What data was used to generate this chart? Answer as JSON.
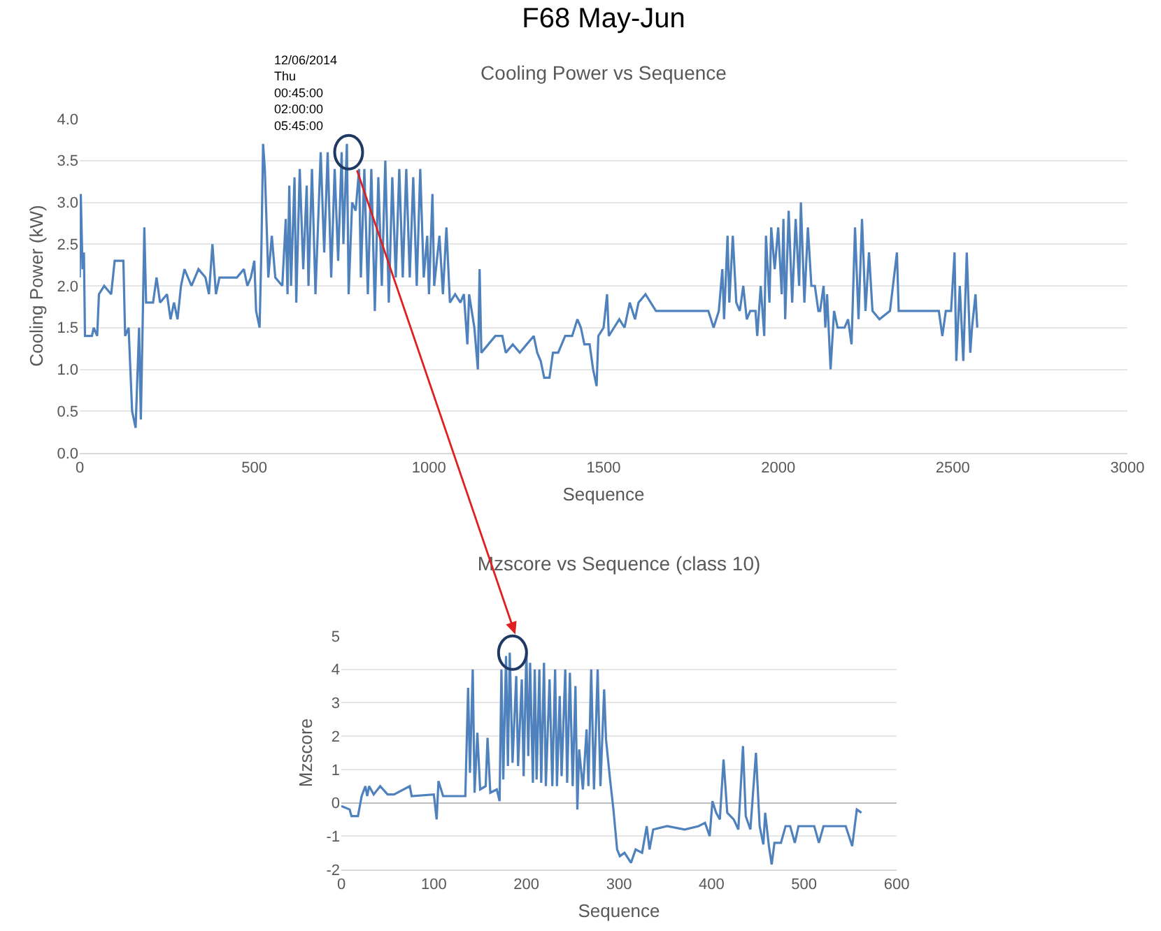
{
  "chart_data": [
    {
      "type": "line",
      "title": "F68 May-Jun",
      "subtitle": "Cooling Power vs Sequence",
      "xlabel": "Sequence",
      "ylabel": "Cooling Power (kW)",
      "grid": "y",
      "x": [
        0,
        3,
        8,
        12,
        15,
        35,
        40,
        50,
        55,
        70,
        90,
        100,
        125,
        130,
        140,
        150,
        160,
        170,
        175,
        180,
        185,
        190,
        210,
        220,
        230,
        250,
        260,
        270,
        280,
        290,
        300,
        320,
        340,
        360,
        370,
        380,
        390,
        400,
        450,
        470,
        480,
        490,
        500,
        505,
        515,
        520,
        525,
        530,
        540,
        550,
        560,
        580,
        590,
        595,
        600,
        605,
        615,
        620,
        630,
        640,
        650,
        655,
        665,
        675,
        690,
        700,
        710,
        720,
        730,
        740,
        750,
        755,
        765,
        770,
        780,
        790,
        800,
        805,
        815,
        825,
        835,
        845,
        855,
        865,
        875,
        885,
        895,
        905,
        915,
        925,
        935,
        945,
        955,
        965,
        975,
        985,
        995,
        1000,
        1010,
        1015,
        1030,
        1040,
        1050,
        1060,
        1075,
        1090,
        1100,
        1110,
        1115,
        1130,
        1140,
        1145,
        1150,
        1170,
        1190,
        1210,
        1220,
        1240,
        1260,
        1280,
        1300,
        1310,
        1320,
        1330,
        1345,
        1355,
        1370,
        1390,
        1410,
        1425,
        1435,
        1445,
        1460,
        1470,
        1480,
        1485,
        1500,
        1510,
        1515,
        1530,
        1545,
        1560,
        1575,
        1590,
        1600,
        1620,
        1650,
        1700,
        1750,
        1800,
        1815,
        1830,
        1840,
        1845,
        1855,
        1860,
        1870,
        1880,
        1890,
        1900,
        1910,
        1920,
        1935,
        1940,
        1950,
        1960,
        1965,
        1975,
        1980,
        1990,
        2000,
        2010,
        2015,
        2020,
        2030,
        2040,
        2050,
        2060,
        2065,
        2075,
        2085,
        2095,
        2105,
        2115,
        2120,
        2130,
        2135,
        2140,
        2150,
        2160,
        2170,
        2190,
        2200,
        2210,
        2220,
        2230,
        2240,
        2250,
        2260,
        2270,
        2290,
        2320,
        2340,
        2345,
        2400,
        2460,
        2470,
        2480,
        2495,
        2505,
        2510,
        2520,
        2530,
        2540,
        2550,
        2555,
        2565,
        2570
      ],
      "series": [
        {
          "color": "#4f81bd",
          "values": [
            2.1,
            3.1,
            2.2,
            2.4,
            1.4,
            1.4,
            1.5,
            1.4,
            1.9,
            2.0,
            1.9,
            2.3,
            2.3,
            1.4,
            1.5,
            0.5,
            0.3,
            1.5,
            0.4,
            1.5,
            2.7,
            1.8,
            1.8,
            2.1,
            1.8,
            1.9,
            1.6,
            1.8,
            1.6,
            2.0,
            2.2,
            2.0,
            2.2,
            2.1,
            1.9,
            2.5,
            1.9,
            2.1,
            2.1,
            2.2,
            2.0,
            2.1,
            2.3,
            1.7,
            1.5,
            2.4,
            3.7,
            3.4,
            2.1,
            2.6,
            2.1,
            2.0,
            2.8,
            1.9,
            3.2,
            2.0,
            3.3,
            1.8,
            3.4,
            2.2,
            3.2,
            2.0,
            3.4,
            1.9,
            3.6,
            2.4,
            3.6,
            2.1,
            3.4,
            2.3,
            3.6,
            2.5,
            3.7,
            1.9,
            3.0,
            2.9,
            3.4,
            2.1,
            3.4,
            1.9,
            3.4,
            1.7,
            3.3,
            2.0,
            3.5,
            1.8,
            3.3,
            2.1,
            3.4,
            2.1,
            3.4,
            2.1,
            3.3,
            2.0,
            3.4,
            2.1,
            2.6,
            1.9,
            3.1,
            2.0,
            2.6,
            1.9,
            2.7,
            1.8,
            1.9,
            1.8,
            1.9,
            1.3,
            1.9,
            1.5,
            1.0,
            2.2,
            1.2,
            1.3,
            1.4,
            1.4,
            1.2,
            1.3,
            1.2,
            1.3,
            1.4,
            1.2,
            1.1,
            0.9,
            0.9,
            1.2,
            1.2,
            1.4,
            1.4,
            1.6,
            1.5,
            1.3,
            1.3,
            1.0,
            0.8,
            1.4,
            1.5,
            1.9,
            1.4,
            1.5,
            1.6,
            1.5,
            1.8,
            1.6,
            1.8,
            1.9,
            1.7,
            1.7,
            1.7,
            1.7,
            1.5,
            1.7,
            2.2,
            1.6,
            2.6,
            1.8,
            2.6,
            1.8,
            1.7,
            2.0,
            1.6,
            1.7,
            1.7,
            1.4,
            2.0,
            1.4,
            2.6,
            1.8,
            2.7,
            2.2,
            2.7,
            1.9,
            2.8,
            1.6,
            2.9,
            1.8,
            2.8,
            2.0,
            3.0,
            1.8,
            2.7,
            2.0,
            2.0,
            1.7,
            1.7,
            2.0,
            1.5,
            1.9,
            1.0,
            1.7,
            1.5,
            1.5,
            1.6,
            1.3,
            2.7,
            1.6,
            2.8,
            1.7,
            2.4,
            1.7,
            1.6,
            1.7,
            2.4,
            1.7,
            1.7,
            1.7,
            1.4,
            1.7,
            1.7,
            2.4,
            1.1,
            2.0,
            1.1,
            2.4,
            1.2,
            1.5,
            1.9,
            1.5
          ]
        }
      ],
      "xlim": [
        0,
        3000
      ],
      "xticks": [
        0,
        500,
        1000,
        1500,
        2000,
        2500,
        3000
      ],
      "ylim": [
        0,
        4
      ],
      "yticks": [
        {
          "value": 0,
          "label": "0.0"
        },
        {
          "value": 0.5,
          "label": "0.5"
        },
        {
          "value": 1,
          "label": "1.0"
        },
        {
          "value": 1.5,
          "label": "1.5"
        },
        {
          "value": 2,
          "label": "2.0"
        },
        {
          "value": 2.5,
          "label": "2.5"
        },
        {
          "value": 3,
          "label": "3.0"
        },
        {
          "value": 3.5,
          "label": "3.5"
        },
        {
          "value": 4,
          "label": "4.0"
        }
      ],
      "annotations": [
        {
          "text": "12/06/2014\nThu\n00:45:00\n02:00:00\n05:45:00",
          "x": 770,
          "y": 3.6
        }
      ]
    },
    {
      "type": "line",
      "title": "Mzscore vs Sequence (class 10)",
      "xlabel": "Sequence",
      "ylabel": "Mzscore",
      "grid": "y",
      "x": [
        0,
        9,
        11,
        18,
        22,
        26,
        28,
        30,
        35,
        42,
        50,
        57,
        74,
        76,
        100,
        103,
        105,
        110,
        134,
        137,
        139,
        142,
        144,
        147,
        150,
        156,
        158,
        161,
        168,
        171,
        173,
        175,
        178,
        180,
        182,
        185,
        189,
        191,
        195,
        197,
        200,
        202,
        204,
        207,
        209,
        211,
        214,
        216,
        219,
        221,
        225,
        228,
        231,
        233,
        236,
        238,
        242,
        244,
        247,
        250,
        253,
        255,
        257,
        261,
        265,
        267,
        270,
        273,
        277,
        280,
        284,
        286,
        290,
        294,
        298,
        301,
        306,
        313,
        318,
        325,
        330,
        333,
        337,
        352,
        371,
        386,
        393,
        398,
        401,
        405,
        409,
        413,
        417,
        424,
        429,
        434,
        437,
        442,
        448,
        452,
        456,
        458,
        462,
        465,
        468,
        475,
        480,
        485,
        490,
        494,
        511,
        516,
        521,
        545,
        552,
        557,
        562
      ],
      "series": [
        {
          "color": "#4f81bd",
          "values": [
            -0.1,
            -0.2,
            -0.4,
            -0.4,
            0.2,
            0.5,
            0.2,
            0.5,
            0.25,
            0.5,
            0.25,
            0.25,
            0.5,
            0.2,
            0.25,
            -0.5,
            0.65,
            0.2,
            0.2,
            3.45,
            0.9,
            4.0,
            0.3,
            2.1,
            0.4,
            0.5,
            1.95,
            0.3,
            0.4,
            0.05,
            4.0,
            0.7,
            4.4,
            1.1,
            4.5,
            1.2,
            3.8,
            1.1,
            3.7,
            0.8,
            4.6,
            1.4,
            4.2,
            0.6,
            4.0,
            0.7,
            4.0,
            0.6,
            4.2,
            0.5,
            3.7,
            0.5,
            4.0,
            0.5,
            3.2,
            0.8,
            4.0,
            0.6,
            3.9,
            0.5,
            3.5,
            -0.2,
            1.6,
            0.4,
            2.2,
            0.5,
            4.0,
            0.4,
            4.0,
            0.5,
            3.4,
            1.9,
            0.8,
            -0.2,
            -1.4,
            -1.6,
            -1.5,
            -1.8,
            -1.4,
            -1.5,
            -0.7,
            -1.4,
            -0.8,
            -0.7,
            -0.8,
            -0.7,
            -0.6,
            -1.0,
            0.05,
            -0.3,
            -0.5,
            1.3,
            -0.3,
            -0.5,
            -0.8,
            1.7,
            -0.4,
            -0.8,
            1.5,
            -0.7,
            -1.25,
            -0.3,
            -1.3,
            -1.85,
            -1.2,
            -1.2,
            -0.7,
            -0.7,
            -1.2,
            -0.7,
            -0.7,
            -1.2,
            -0.7,
            -0.7,
            -1.3,
            -0.2,
            -0.3
          ]
        }
      ],
      "xlim": [
        0,
        600
      ],
      "xticks": [
        0,
        100,
        200,
        300,
        400,
        500,
        600
      ],
      "ylim": [
        -2,
        5
      ],
      "yticks": [
        -2,
        -1,
        0,
        1,
        2,
        3,
        4,
        5
      ]
    }
  ]
}
